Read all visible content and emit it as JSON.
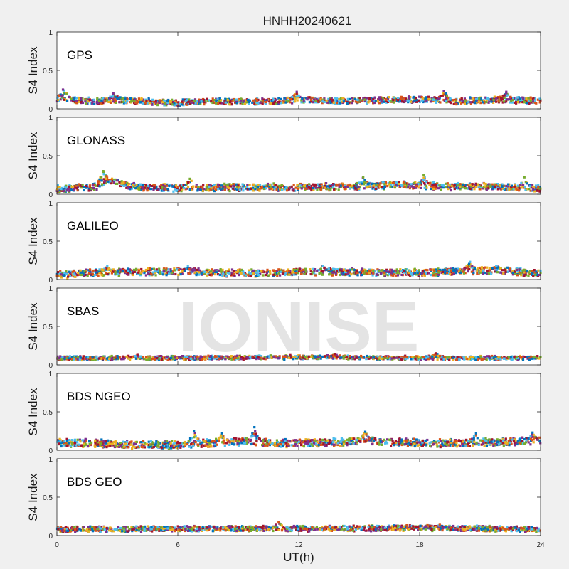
{
  "figure": {
    "title": "HNHH20240621",
    "watermark": "IONISE",
    "xlabel": "UT(h)",
    "background": "#f0f0f0",
    "axes_background": "#ffffff"
  },
  "chart_data": {
    "type": "scatter",
    "layout": "stacked-subplots",
    "shared_x": {
      "label": "UT(h)",
      "lim": [
        0,
        24
      ],
      "ticks": [
        0,
        6,
        12,
        18,
        24
      ],
      "tick_labels": [
        "0",
        "6",
        "12",
        "18",
        "24"
      ]
    },
    "y": {
      "label": "S4 Index",
      "lim": [
        0,
        1
      ],
      "ticks": [
        0,
        0.5,
        1
      ],
      "tick_labels": [
        "0",
        "0.5",
        "1"
      ]
    },
    "grid": false,
    "legend": "none",
    "series_colors": [
      "#0072bd",
      "#d95319",
      "#edb120",
      "#7e2f8e",
      "#77ac30",
      "#4dbeee",
      "#a2142f"
    ],
    "panels": [
      {
        "label": "GPS",
        "profile": [
          [
            0,
            0.12
          ],
          [
            0.3,
            0.16
          ],
          [
            1,
            0.11
          ],
          [
            2,
            0.1
          ],
          [
            3,
            0.12
          ],
          [
            4,
            0.1
          ],
          [
            6,
            0.08
          ],
          [
            8,
            0.1
          ],
          [
            10,
            0.09
          ],
          [
            12,
            0.12
          ],
          [
            14,
            0.1
          ],
          [
            16,
            0.11
          ],
          [
            18,
            0.12
          ],
          [
            20,
            0.1
          ],
          [
            22,
            0.12
          ],
          [
            24,
            0.1
          ]
        ],
        "spread": 0.035,
        "peaks": [
          {
            "x": 0.3,
            "y": 0.25
          },
          {
            "x": 2.8,
            "y": 0.2
          },
          {
            "x": 11.9,
            "y": 0.22
          },
          {
            "x": 19.2,
            "y": 0.23
          },
          {
            "x": 22.3,
            "y": 0.22
          }
        ]
      },
      {
        "label": "GLONASS",
        "profile": [
          [
            0,
            0.07
          ],
          [
            2,
            0.1
          ],
          [
            2.4,
            0.18
          ],
          [
            4,
            0.09
          ],
          [
            6,
            0.08
          ],
          [
            9,
            0.09
          ],
          [
            12,
            0.09
          ],
          [
            15,
            0.1
          ],
          [
            17,
            0.12
          ],
          [
            19,
            0.1
          ],
          [
            21,
            0.1
          ],
          [
            24,
            0.08
          ]
        ],
        "spread": 0.04,
        "peaks": [
          {
            "x": 2.3,
            "y": 0.3
          },
          {
            "x": 6.6,
            "y": 0.2
          },
          {
            "x": 15.2,
            "y": 0.22
          },
          {
            "x": 18.2,
            "y": 0.25
          },
          {
            "x": 23.2,
            "y": 0.22
          }
        ]
      },
      {
        "label": "GALILEO",
        "profile": [
          [
            0,
            0.06
          ],
          [
            2,
            0.09
          ],
          [
            4,
            0.1
          ],
          [
            6,
            0.1
          ],
          [
            8,
            0.09
          ],
          [
            10,
            0.08
          ],
          [
            12,
            0.1
          ],
          [
            14,
            0.1
          ],
          [
            16,
            0.09
          ],
          [
            18,
            0.09
          ],
          [
            20,
            0.11
          ],
          [
            22,
            0.12
          ],
          [
            24,
            0.08
          ]
        ],
        "spread": 0.04,
        "peaks": [
          {
            "x": 2.5,
            "y": 0.17
          },
          {
            "x": 6.5,
            "y": 0.18
          },
          {
            "x": 13.2,
            "y": 0.18
          },
          {
            "x": 20.5,
            "y": 0.23
          },
          {
            "x": 21.8,
            "y": 0.18
          }
        ]
      },
      {
        "label": "SBAS",
        "profile": [
          [
            0,
            0.09
          ],
          [
            6,
            0.09
          ],
          [
            12,
            0.1
          ],
          [
            18,
            0.09
          ],
          [
            24,
            0.09
          ]
        ],
        "spread": 0.02,
        "peaks": [
          {
            "x": 4,
            "y": 0.13
          },
          {
            "x": 13.8,
            "y": 0.14
          },
          {
            "x": 18.8,
            "y": 0.15
          }
        ]
      },
      {
        "label": "BDS NGEO",
        "profile": [
          [
            0,
            0.1
          ],
          [
            2,
            0.09
          ],
          [
            4,
            0.07
          ],
          [
            6,
            0.07
          ],
          [
            8,
            0.1
          ],
          [
            9.5,
            0.12
          ],
          [
            11,
            0.09
          ],
          [
            13,
            0.1
          ],
          [
            15,
            0.12
          ],
          [
            17,
            0.1
          ],
          [
            19,
            0.09
          ],
          [
            21,
            0.1
          ],
          [
            24,
            0.12
          ]
        ],
        "spread": 0.045,
        "peaks": [
          {
            "x": 6.8,
            "y": 0.25
          },
          {
            "x": 8.2,
            "y": 0.22
          },
          {
            "x": 9.8,
            "y": 0.3
          },
          {
            "x": 15.3,
            "y": 0.24
          },
          {
            "x": 20.8,
            "y": 0.22
          },
          {
            "x": 23.6,
            "y": 0.23
          }
        ]
      },
      {
        "label": "BDS GEO",
        "profile": [
          [
            0,
            0.08
          ],
          [
            6,
            0.09
          ],
          [
            12,
            0.09
          ],
          [
            18,
            0.1
          ],
          [
            24,
            0.08
          ]
        ],
        "spread": 0.03,
        "peaks": [
          {
            "x": 11,
            "y": 0.17
          },
          {
            "x": 19,
            "y": 0.14
          }
        ]
      }
    ]
  }
}
